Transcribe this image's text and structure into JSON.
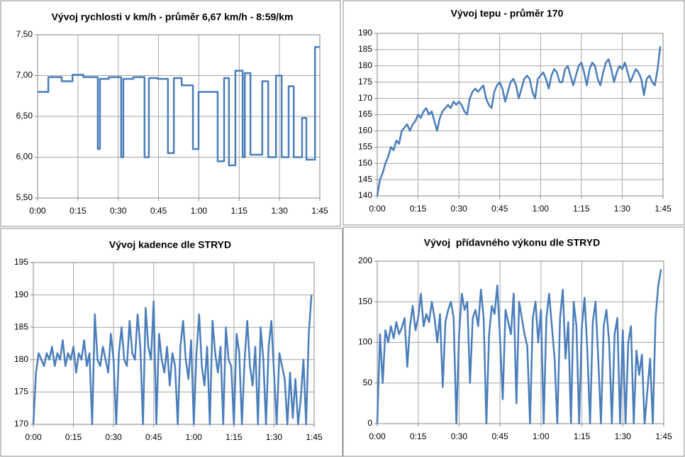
{
  "chart_data": [
    {
      "type": "line",
      "title": "Vývoj rychlosti v km/h - průměr 6,67 km/h - 8:59/km",
      "color": "#4a7ebb",
      "grid": true,
      "xlim": [
        0,
        105
      ],
      "xticks": [
        {
          "value": 0,
          "label": "0:00"
        },
        {
          "value": 15,
          "label": "0:15"
        },
        {
          "value": 30,
          "label": "0:30"
        },
        {
          "value": 45,
          "label": "0:45"
        },
        {
          "value": 60,
          "label": "1:00"
        },
        {
          "value": 75,
          "label": "1:15"
        },
        {
          "value": 90,
          "label": "1:30"
        },
        {
          "value": 105,
          "label": "1:45"
        }
      ],
      "ylim": [
        5.5,
        7.5
      ],
      "yticks": [
        {
          "value": 5.5,
          "label": "5,50"
        },
        {
          "value": 6.0,
          "label": "6,00"
        },
        {
          "value": 6.5,
          "label": "6,50"
        },
        {
          "value": 7.0,
          "label": "7,00"
        },
        {
          "value": 7.5,
          "label": "7,50"
        }
      ],
      "x": [
        0,
        4,
        4,
        9,
        9,
        13,
        13,
        17,
        17,
        22.4,
        22.4,
        23.2,
        23.2,
        26.5,
        26.5,
        31.1,
        31.1,
        31.9,
        31.9,
        35.6,
        35.6,
        39.8,
        39.8,
        41.4,
        41.4,
        44.6,
        44.6,
        48.5,
        48.5,
        50.7,
        50.7,
        53.6,
        53.6,
        57.8,
        57.8,
        59.9,
        59.9,
        67,
        67,
        69.4,
        69.4,
        71.2,
        71.2,
        73.6,
        73.6,
        76.3,
        76.3,
        77.1,
        77.1,
        79.2,
        79.2,
        83.6,
        83.6,
        85.8,
        85.8,
        88.7,
        88.7,
        90.8,
        90.8,
        93.4,
        93.4,
        95.3,
        95.3,
        98.4,
        98.4,
        100,
        100,
        103.2,
        103.2,
        105
      ],
      "values": [
        6.8,
        6.8,
        6.98,
        6.98,
        6.93,
        6.93,
        7.01,
        7.01,
        6.98,
        6.98,
        6.1,
        6.1,
        6.96,
        6.96,
        6.98,
        6.98,
        6.0,
        6.0,
        6.96,
        6.96,
        6.98,
        6.98,
        6.0,
        6.0,
        6.97,
        6.97,
        6.96,
        6.96,
        6.05,
        6.05,
        6.97,
        6.97,
        6.88,
        6.88,
        6.1,
        6.1,
        6.8,
        6.8,
        5.95,
        5.95,
        6.97,
        6.97,
        5.9,
        5.9,
        7.06,
        7.06,
        6.0,
        6.0,
        7.03,
        7.03,
        6.03,
        6.03,
        6.93,
        6.93,
        6.0,
        6.0,
        7.0,
        7.0,
        6.0,
        6.0,
        6.87,
        6.87,
        6.0,
        6.0,
        6.48,
        6.48,
        5.97,
        5.97,
        7.35,
        7.35
      ]
    },
    {
      "type": "line",
      "title": "Vývoj tepu - průměr 170",
      "color": "#4a7ebb",
      "grid": true,
      "xlim": [
        0,
        105
      ],
      "xticks": [
        {
          "value": 0,
          "label": "0:00"
        },
        {
          "value": 15,
          "label": "0:15"
        },
        {
          "value": 30,
          "label": "0:30"
        },
        {
          "value": 45,
          "label": "0:45"
        },
        {
          "value": 60,
          "label": "1:00"
        },
        {
          "value": 75,
          "label": "1:15"
        },
        {
          "value": 90,
          "label": "1:30"
        },
        {
          "value": 105,
          "label": "1:45"
        }
      ],
      "ylim": [
        140,
        190
      ],
      "yticks": [
        140,
        145,
        150,
        155,
        160,
        165,
        170,
        175,
        180,
        185,
        190
      ],
      "x": [
        0,
        1,
        2,
        3,
        4,
        5,
        6,
        7,
        8,
        9,
        10,
        11,
        12,
        13,
        14,
        15,
        16,
        17,
        18,
        19,
        20,
        21,
        22,
        23,
        24,
        25,
        26,
        27,
        28,
        29,
        30,
        31,
        32,
        33,
        34,
        35,
        36,
        37,
        38,
        39,
        40,
        41,
        42,
        43,
        44,
        45,
        46,
        47,
        48,
        49,
        50,
        51,
        52,
        53,
        54,
        55,
        56,
        57,
        58,
        59,
        60,
        61,
        62,
        63,
        64,
        65,
        66,
        67,
        68,
        69,
        70,
        71,
        72,
        73,
        74,
        75,
        76,
        77,
        78,
        79,
        80,
        81,
        82,
        83,
        84,
        85,
        86,
        87,
        88,
        89,
        90,
        91,
        92,
        93,
        94,
        95,
        96,
        97,
        98,
        99,
        100,
        101,
        102,
        103,
        104
      ],
      "values": [
        140,
        145,
        147,
        150,
        152,
        155,
        154,
        157,
        156,
        160,
        161,
        162,
        160,
        162,
        163,
        165,
        164,
        166,
        167,
        165,
        166,
        163,
        160,
        164,
        166,
        167,
        168,
        167,
        169,
        168,
        169,
        168,
        166,
        165,
        170,
        172,
        173,
        172,
        173,
        174,
        170,
        168,
        167,
        172,
        174,
        175,
        173,
        169,
        172,
        175,
        176,
        174,
        170,
        173,
        176,
        177,
        176,
        172,
        170,
        176,
        177,
        178,
        176,
        173,
        177,
        179,
        178,
        175,
        175,
        179,
        180,
        177,
        174,
        177,
        180,
        181,
        178,
        174,
        179,
        181,
        180,
        176,
        174,
        178,
        181,
        182,
        179,
        175,
        178,
        180,
        179,
        181,
        178,
        175,
        177,
        179,
        178,
        176,
        171,
        176,
        177,
        175,
        174,
        179,
        186
      ]
    },
    {
      "type": "line",
      "title": "Vývoj kadence dle STRYD",
      "color": "#4a7ebb",
      "grid": true,
      "xlim": [
        0,
        105
      ],
      "xticks": [
        {
          "value": 0,
          "label": "0:00"
        },
        {
          "value": 15,
          "label": "0:15"
        },
        {
          "value": 30,
          "label": "0:30"
        },
        {
          "value": 45,
          "label": "0:45"
        },
        {
          "value": 60,
          "label": "1:00"
        },
        {
          "value": 75,
          "label": "1:15"
        },
        {
          "value": 90,
          "label": "1:30"
        },
        {
          "value": 105,
          "label": "1:45"
        }
      ],
      "ylim": [
        170,
        195
      ],
      "yticks": [
        170,
        175,
        180,
        185,
        190,
        195
      ],
      "x": [
        0,
        1,
        2,
        3,
        4,
        5,
        6,
        7,
        8,
        9,
        10,
        11,
        12,
        13,
        14,
        15,
        16,
        17,
        18,
        19,
        20,
        21,
        22,
        23,
        24,
        25,
        26,
        27,
        28,
        29,
        30,
        31,
        32,
        33,
        34,
        35,
        36,
        37,
        38,
        39,
        40,
        41,
        42,
        43,
        44,
        45,
        46,
        47,
        48,
        49,
        50,
        51,
        52,
        53,
        54,
        55,
        56,
        57,
        58,
        59,
        60,
        61,
        62,
        63,
        64,
        65,
        66,
        67,
        68,
        69,
        70,
        71,
        72,
        73,
        74,
        75,
        76,
        77,
        78,
        79,
        80,
        81,
        82,
        83,
        84,
        85,
        86,
        87,
        88,
        89,
        90,
        91,
        92,
        93,
        94,
        95,
        96,
        97,
        98,
        99,
        100,
        101,
        102,
        103,
        104
      ],
      "values": [
        170,
        178,
        181,
        180,
        179,
        181,
        180,
        182,
        179,
        181,
        180,
        183,
        179,
        181,
        180,
        182,
        178,
        181,
        180,
        183,
        179,
        181,
        170,
        187,
        180,
        179,
        182,
        180,
        178,
        184,
        180,
        170,
        181,
        185,
        180,
        179,
        186,
        181,
        180,
        187,
        182,
        170,
        188,
        182,
        180,
        189,
        170,
        184,
        180,
        178,
        182,
        176,
        181,
        179,
        170,
        182,
        186,
        180,
        177,
        183,
        170,
        181,
        187,
        179,
        176,
        182,
        170,
        186,
        181,
        178,
        182,
        170,
        185,
        180,
        179,
        170,
        184,
        181,
        170,
        180,
        186,
        179,
        176,
        182,
        170,
        185,
        180,
        170,
        182,
        186,
        178,
        170,
        181,
        179,
        177,
        170,
        178,
        171,
        177,
        170,
        174,
        180,
        170,
        184,
        190
      ]
    },
    {
      "type": "line",
      "title": "Vývoj  přídavného výkonu dle STRYD",
      "color": "#4a7ebb",
      "grid": true,
      "xlim": [
        0,
        105
      ],
      "xticks": [
        {
          "value": 0,
          "label": "0:00"
        },
        {
          "value": 15,
          "label": "0:15"
        },
        {
          "value": 30,
          "label": "0:30"
        },
        {
          "value": 45,
          "label": "0:45"
        },
        {
          "value": 60,
          "label": "1:00"
        },
        {
          "value": 75,
          "label": "1:15"
        },
        {
          "value": 90,
          "label": "1:30"
        },
        {
          "value": 105,
          "label": "1:45"
        }
      ],
      "ylim": [
        0,
        200
      ],
      "yticks": [
        0,
        50,
        100,
        150,
        200
      ],
      "x": [
        0,
        1,
        2,
        3,
        4,
        5,
        6,
        7,
        8,
        9,
        10,
        11,
        12,
        13,
        14,
        15,
        16,
        17,
        18,
        19,
        20,
        21,
        22,
        23,
        24,
        25,
        26,
        27,
        28,
        29,
        30,
        31,
        32,
        33,
        34,
        35,
        36,
        37,
        38,
        39,
        40,
        41,
        42,
        43,
        44,
        45,
        46,
        47,
        48,
        49,
        50,
        51,
        52,
        53,
        54,
        55,
        56,
        57,
        58,
        59,
        60,
        61,
        62,
        63,
        64,
        65,
        66,
        67,
        68,
        69,
        70,
        71,
        72,
        73,
        74,
        75,
        76,
        77,
        78,
        79,
        80,
        81,
        82,
        83,
        84,
        85,
        86,
        87,
        88,
        89,
        90,
        91,
        92,
        93,
        94,
        95,
        96,
        97,
        98,
        99,
        100,
        101,
        102,
        103,
        104
      ],
      "values": [
        0,
        110,
        50,
        115,
        100,
        120,
        105,
        125,
        110,
        118,
        130,
        70,
        120,
        145,
        115,
        130,
        160,
        120,
        135,
        125,
        150,
        130,
        100,
        135,
        45,
        125,
        140,
        150,
        130,
        0,
        110,
        160,
        140,
        150,
        50,
        130,
        140,
        120,
        165,
        130,
        0,
        110,
        145,
        135,
        170,
        105,
        30,
        140,
        125,
        110,
        160,
        25,
        150,
        130,
        110,
        95,
        0,
        130,
        150,
        100,
        140,
        0,
        130,
        160,
        120,
        80,
        0,
        130,
        165,
        80,
        125,
        0,
        150,
        120,
        0,
        120,
        155,
        90,
        0,
        125,
        150,
        80,
        0,
        120,
        140,
        100,
        0,
        110,
        130,
        0,
        115,
        0,
        100,
        120,
        0,
        90,
        60,
        85,
        0,
        40,
        80,
        0,
        130,
        170,
        190
      ]
    }
  ]
}
